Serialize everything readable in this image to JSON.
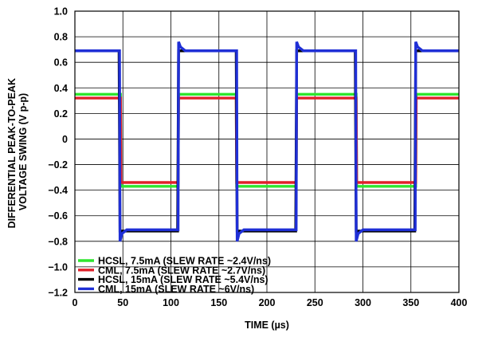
{
  "chart_data": {
    "type": "line",
    "title": "",
    "xlabel": "TIME (µs)",
    "ylabel_lines": [
      "DIFFERENTIAL PEAK-TO-PEAK",
      "VOLTAGE SWING (V p-p)"
    ],
    "xlim": [
      0,
      400
    ],
    "ylim": [
      -1.2,
      1.0
    ],
    "x_ticks": [
      0,
      50,
      100,
      150,
      200,
      250,
      300,
      350,
      400
    ],
    "y_ticks": [
      1.0,
      0.8,
      0.6,
      0.4,
      0.2,
      0,
      -0.2,
      -0.4,
      -0.6,
      -0.8,
      -1.0,
      -1.2
    ],
    "x_tick_labels": [
      "0",
      "50",
      "100",
      "150",
      "200",
      "250",
      "300",
      "350",
      "400"
    ],
    "y_tick_labels": [
      "1.0",
      "0.8",
      "0.6",
      "0.4",
      "0.2",
      "0",
      "−0.2",
      "−0.4",
      "−0.6",
      "−0.8",
      "−1.0",
      "−1.2"
    ],
    "grid": true,
    "legend_position": "bottom-left",
    "series": [
      {
        "name": "HCSL, 7.5mA (SLEW RATE ~2.4V/ns)",
        "color": "#2ee62e",
        "x": [
          0,
          47.5,
          48,
          107.5,
          108,
          168,
          168.5,
          230.5,
          231,
          293,
          293.5,
          355,
          355.5,
          400
        ],
        "y": [
          0.35,
          0.35,
          -0.37,
          -0.37,
          0.35,
          0.35,
          -0.37,
          -0.37,
          0.35,
          0.35,
          -0.37,
          -0.37,
          0.35,
          0.35
        ]
      },
      {
        "name": "CML, 7.5mA (SLEW RATE ~2.7V/ns)",
        "color": "#e0202a",
        "x": [
          0,
          47.5,
          48,
          107.5,
          108,
          168,
          168.5,
          230.5,
          231,
          293,
          293.5,
          355,
          355.5,
          400
        ],
        "y": [
          0.32,
          0.32,
          -0.34,
          -0.34,
          0.32,
          0.32,
          -0.34,
          -0.34,
          0.32,
          0.32,
          -0.34,
          -0.34,
          0.32,
          0.32
        ]
      },
      {
        "name": "HCSL, 15mA (SLEW RATE ~5.4V/ns)",
        "color": "#000000",
        "x": [
          0,
          46,
          47,
          107,
          108,
          168,
          169,
          230,
          231,
          292,
          293,
          354,
          355,
          400
        ],
        "y": [
          0.69,
          0.69,
          -0.72,
          -0.72,
          0.69,
          0.69,
          -0.72,
          -0.72,
          0.69,
          0.69,
          -0.72,
          -0.72,
          0.69,
          0.69
        ]
      },
      {
        "name": "CML, 15mA (SLEW RATE ~6V/ns)",
        "color": "#1f2fd6",
        "x": [
          0,
          46.5,
          47,
          49,
          54,
          107.5,
          108,
          110,
          115,
          168.5,
          169,
          171,
          176,
          230.5,
          231,
          233,
          238,
          292.5,
          293,
          295,
          300,
          354.5,
          355,
          357,
          362,
          400
        ],
        "y": [
          0.69,
          0.69,
          -0.8,
          -0.74,
          -0.71,
          -0.71,
          0.76,
          0.72,
          0.69,
          0.69,
          -0.8,
          -0.74,
          -0.71,
          -0.71,
          0.76,
          0.72,
          0.69,
          0.69,
          -0.8,
          -0.74,
          -0.71,
          -0.71,
          0.76,
          0.72,
          0.69,
          0.69
        ]
      }
    ]
  }
}
